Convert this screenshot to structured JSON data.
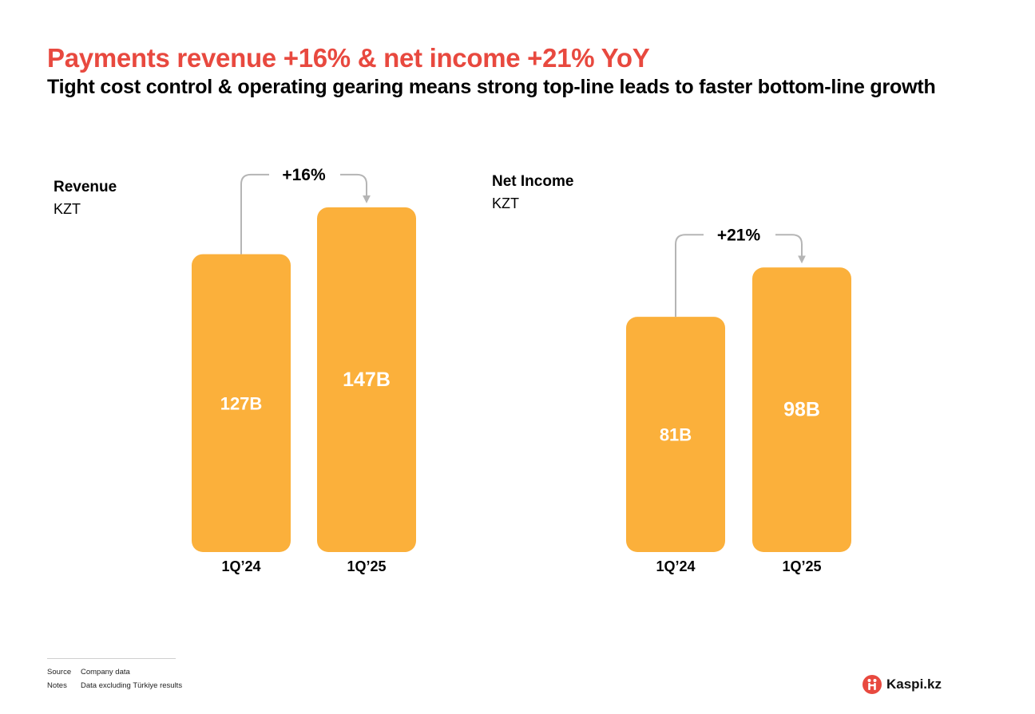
{
  "title": "Payments revenue +16% & net income +21% YoY",
  "subtitle": "Tight cost control & operating gearing means strong top-line leads to faster bottom-line growth",
  "colors": {
    "bar": "#fbb03b",
    "title": "#e8493f",
    "arrow": "#b5b5b5",
    "bar_label": "#ffffff"
  },
  "chart_data": [
    {
      "type": "bar",
      "title": "Revenue",
      "unit": "KZT",
      "categories": [
        "1Q’24",
        "1Q’25"
      ],
      "values": [
        127,
        147
      ],
      "value_labels": [
        "127B",
        "147B"
      ],
      "growth_label": "+16%"
    },
    {
      "type": "bar",
      "title": "Net Income",
      "unit": "KZT",
      "categories": [
        "1Q’24",
        "1Q’25"
      ],
      "values": [
        81,
        98
      ],
      "value_labels": [
        "81B",
        "98B"
      ],
      "growth_label": "+21%"
    }
  ],
  "footer": {
    "source_label": "Source",
    "source_text": "Company data",
    "notes_label": "Notes",
    "notes_text": "Data excluding Türkiye results"
  },
  "logo": {
    "icon": "kaspi-logo-icon",
    "text": "Kaspi.kz"
  }
}
